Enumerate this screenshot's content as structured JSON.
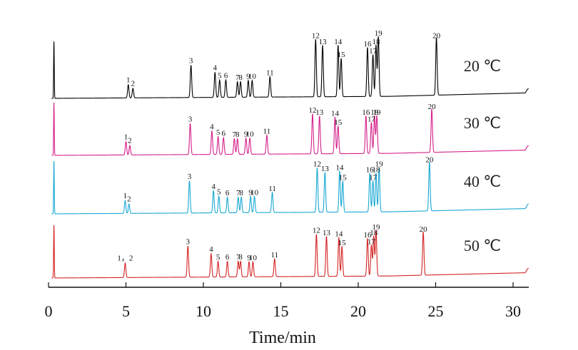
{
  "chart_data": {
    "type": "line",
    "xlabel": "Time/min",
    "xlim": [
      0,
      31
    ],
    "x_ticks": [
      "0",
      "5",
      "10",
      "15",
      "20",
      "25",
      "30"
    ],
    "series": [
      {
        "name": "20 ℃",
        "color": "#000000",
        "peaks": [
          {
            "label": "1",
            "t": 5.15,
            "h": 0.22
          },
          {
            "label": "2",
            "t": 5.45,
            "h": 0.16
          },
          {
            "label": "3",
            "t": 9.2,
            "h": 0.54
          },
          {
            "label": "4",
            "t": 10.75,
            "h": 0.42
          },
          {
            "label": "5",
            "t": 11.05,
            "h": 0.29
          },
          {
            "label": "6",
            "t": 11.45,
            "h": 0.29
          },
          {
            "label": "7",
            "t": 12.2,
            "h": 0.26
          },
          {
            "label": "8",
            "t": 12.4,
            "h": 0.26
          },
          {
            "label": "9",
            "t": 12.9,
            "h": 0.28
          },
          {
            "label": "10",
            "t": 13.15,
            "h": 0.28
          },
          {
            "label": "11",
            "t": 14.3,
            "h": 0.34
          },
          {
            "label": "12",
            "t": 17.25,
            "h": 0.96
          },
          {
            "label": "13",
            "t": 17.7,
            "h": 0.86
          },
          {
            "label": "14",
            "t": 18.7,
            "h": 0.86
          },
          {
            "label": "15",
            "t": 18.9,
            "h": 0.64
          },
          {
            "label": "16",
            "t": 20.6,
            "h": 0.82
          },
          {
            "label": "17",
            "t": 20.95,
            "h": 0.7
          },
          {
            "label": "18",
            "t": 21.15,
            "h": 0.86
          },
          {
            "label": "19",
            "t": 21.3,
            "h": 1.0
          },
          {
            "label": "20",
            "t": 25.05,
            "h": 0.96
          }
        ]
      },
      {
        "name": "30 ℃",
        "color": "#d4208a",
        "peaks": [
          {
            "label": "1",
            "t": 5.0,
            "h": 0.24
          },
          {
            "label": "2",
            "t": 5.25,
            "h": 0.17
          },
          {
            "label": "3",
            "t": 9.15,
            "h": 0.56
          },
          {
            "label": "4",
            "t": 10.55,
            "h": 0.42
          },
          {
            "label": "5",
            "t": 10.95,
            "h": 0.32
          },
          {
            "label": "6",
            "t": 11.3,
            "h": 0.3
          },
          {
            "label": "7",
            "t": 12.0,
            "h": 0.28
          },
          {
            "label": "8",
            "t": 12.2,
            "h": 0.28
          },
          {
            "label": "9",
            "t": 12.75,
            "h": 0.29
          },
          {
            "label": "10",
            "t": 13.0,
            "h": 0.29
          },
          {
            "label": "11",
            "t": 14.1,
            "h": 0.34
          },
          {
            "label": "12",
            "t": 17.05,
            "h": 0.72
          },
          {
            "label": "13",
            "t": 17.5,
            "h": 0.68
          },
          {
            "label": "14",
            "t": 18.5,
            "h": 0.66
          },
          {
            "label": "15",
            "t": 18.7,
            "h": 0.5
          },
          {
            "label": "16",
            "t": 20.5,
            "h": 0.68
          },
          {
            "label": "17",
            "t": 20.85,
            "h": 0.56
          },
          {
            "label": "18",
            "t": 21.05,
            "h": 0.68
          },
          {
            "label": "19",
            "t": 21.2,
            "h": 0.68
          },
          {
            "label": "20",
            "t": 24.75,
            "h": 0.78
          }
        ]
      },
      {
        "name": "40 ℃",
        "color": "#1aa8d4",
        "peaks": [
          {
            "label": "1",
            "t": 4.95,
            "h": 0.23
          },
          {
            "label": "2",
            "t": 5.2,
            "h": 0.17
          },
          {
            "label": "3",
            "t": 9.1,
            "h": 0.58
          },
          {
            "label": "4",
            "t": 10.65,
            "h": 0.4
          },
          {
            "label": "5",
            "t": 11.0,
            "h": 0.3
          },
          {
            "label": "6",
            "t": 11.55,
            "h": 0.28
          },
          {
            "label": "7",
            "t": 12.25,
            "h": 0.28
          },
          {
            "label": "8",
            "t": 12.45,
            "h": 0.28
          },
          {
            "label": "9",
            "t": 13.05,
            "h": 0.29
          },
          {
            "label": "10",
            "t": 13.3,
            "h": 0.29
          },
          {
            "label": "11",
            "t": 14.45,
            "h": 0.36
          },
          {
            "label": "12",
            "t": 17.35,
            "h": 0.8
          },
          {
            "label": "13",
            "t": 17.85,
            "h": 0.72
          },
          {
            "label": "14",
            "t": 18.8,
            "h": 0.74
          },
          {
            "label": "15",
            "t": 19.0,
            "h": 0.56
          },
          {
            "label": "16",
            "t": 20.75,
            "h": 0.7
          },
          {
            "label": "17",
            "t": 20.95,
            "h": 0.56
          },
          {
            "label": "18",
            "t": 21.15,
            "h": 0.7
          },
          {
            "label": "19",
            "t": 21.35,
            "h": 0.8
          },
          {
            "label": "20",
            "t": 24.6,
            "h": 0.88
          }
        ]
      },
      {
        "name": "50 ℃",
        "color": "#d42525",
        "peaks": [
          {
            "label": "1，2",
            "t": 4.95,
            "h": 0.26
          },
          {
            "label": "3",
            "t": 9.0,
            "h": 0.56
          },
          {
            "label": "4",
            "t": 10.5,
            "h": 0.42
          },
          {
            "label": "5",
            "t": 10.95,
            "h": 0.28
          },
          {
            "label": "6",
            "t": 11.55,
            "h": 0.28
          },
          {
            "label": "7",
            "t": 12.25,
            "h": 0.28
          },
          {
            "label": "8",
            "t": 12.4,
            "h": 0.28
          },
          {
            "label": "9",
            "t": 12.95,
            "h": 0.27
          },
          {
            "label": "10",
            "t": 13.2,
            "h": 0.27
          },
          {
            "label": "11",
            "t": 14.6,
            "h": 0.32
          },
          {
            "label": "12",
            "t": 17.3,
            "h": 0.76
          },
          {
            "label": "13",
            "t": 17.95,
            "h": 0.72
          },
          {
            "label": "14",
            "t": 18.75,
            "h": 0.7
          },
          {
            "label": "15",
            "t": 18.95,
            "h": 0.54
          },
          {
            "label": "16",
            "t": 20.6,
            "h": 0.68
          },
          {
            "label": "17",
            "t": 20.85,
            "h": 0.56
          },
          {
            "label": "18",
            "t": 21.0,
            "h": 0.72
          },
          {
            "label": "19",
            "t": 21.15,
            "h": 0.82
          },
          {
            "label": "20",
            "t": 24.2,
            "h": 0.78
          }
        ]
      }
    ]
  }
}
